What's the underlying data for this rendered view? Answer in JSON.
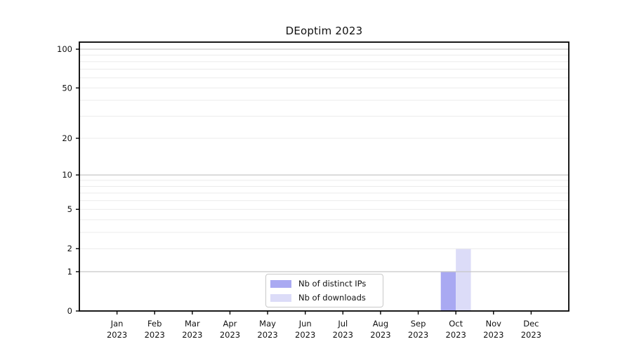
{
  "chart_data": {
    "type": "bar",
    "title": "DEoptim 2023",
    "categories": [
      "Jan",
      "Feb",
      "Mar",
      "Apr",
      "May",
      "Jun",
      "Jul",
      "Aug",
      "Sep",
      "Oct",
      "Nov",
      "Dec"
    ],
    "xtick_year": "2023",
    "series": [
      {
        "name": "Nb of distinct IPs",
        "color": "#a9a9f2",
        "values": [
          0,
          0,
          0,
          0,
          0,
          0,
          0,
          0,
          0,
          1,
          0,
          0
        ]
      },
      {
        "name": "Nb of downloads",
        "color": "#dcdcf8",
        "values": [
          0,
          0,
          0,
          0,
          0,
          0,
          0,
          0,
          0,
          2,
          0,
          0
        ]
      }
    ],
    "yscale": "log1p",
    "ylim": [
      0,
      113.4
    ],
    "yticks": [
      0,
      1,
      2,
      5,
      10,
      20,
      50,
      100
    ],
    "grid": {
      "major_lines": [
        1,
        10,
        100
      ],
      "minor_lines": [
        2,
        3,
        4,
        5,
        6,
        7,
        8,
        9,
        20,
        30,
        40,
        50,
        60,
        70,
        80,
        90
      ],
      "major_color": "#c6c6c6",
      "minor_color": "#ebebeb"
    },
    "legend_position": "bottom-center",
    "axis_color": "#000000",
    "background_color": "#ffffff"
  }
}
